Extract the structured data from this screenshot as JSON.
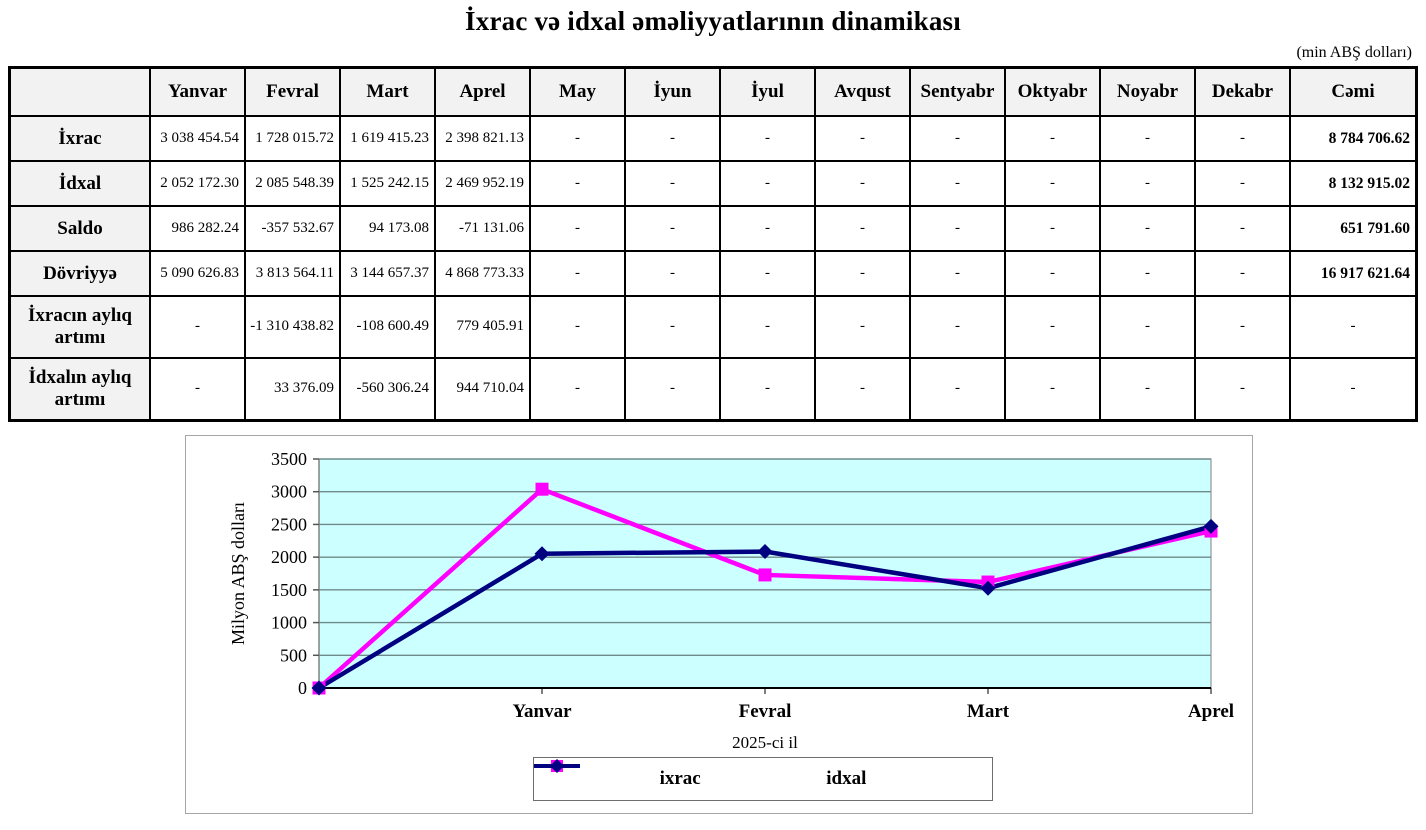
{
  "page": {
    "title": "İxrac və idxal əməliyyatlarının dinamikası",
    "unit_note": "(min ABŞ dolları)"
  },
  "table": {
    "columns": [
      "",
      "Yanvar",
      "Fevral",
      "Mart",
      "Aprel",
      "May",
      "İyun",
      "İyul",
      "Avqust",
      "Sentyabr",
      "Oktyabr",
      "Noyabr",
      "Dekabr",
      "Cəmi"
    ],
    "rows": [
      {
        "label": "İxrac",
        "tall": false,
        "values": [
          "3 038 454.54",
          "1 728 015.72",
          "1 619 415.23",
          "2 398 821.13",
          "-",
          "-",
          "-",
          "-",
          "-",
          "-",
          "-",
          "-",
          "8 784 706.62"
        ]
      },
      {
        "label": "İdxal",
        "tall": false,
        "values": [
          "2 052 172.30",
          "2 085 548.39",
          "1 525 242.15",
          "2 469 952.19",
          "-",
          "-",
          "-",
          "-",
          "-",
          "-",
          "-",
          "-",
          "8 132 915.02"
        ]
      },
      {
        "label": "Saldo",
        "tall": false,
        "values": [
          "986 282.24",
          "-357 532.67",
          "94 173.08",
          "-71 131.06",
          "-",
          "-",
          "-",
          "-",
          "-",
          "-",
          "-",
          "-",
          "651 791.60"
        ]
      },
      {
        "label": "Dövriyyə",
        "tall": false,
        "values": [
          "5 090 626.83",
          "3 813 564.11",
          "3 144 657.37",
          "4 868 773.33",
          "-",
          "-",
          "-",
          "-",
          "-",
          "-",
          "-",
          "-",
          "16 917 621.64"
        ]
      },
      {
        "label": "İxracın aylıq artımı",
        "tall": true,
        "values": [
          "-",
          "-1 310 438.82",
          "-108 600.49",
          "779 405.91",
          "-",
          "-",
          "-",
          "-",
          "-",
          "-",
          "-",
          "-",
          "-"
        ]
      },
      {
        "label": "İdxalın aylıq artımı",
        "tall": true,
        "values": [
          "-",
          "33 376.09",
          "-560 306.24",
          "944 710.04",
          "-",
          "-",
          "-",
          "-",
          "-",
          "-",
          "-",
          "-",
          "-"
        ]
      }
    ]
  },
  "chart_data": {
    "type": "line",
    "title": "",
    "x_categories": [
      "",
      "Yanvar",
      "Fevral",
      "Mart",
      "Aprel"
    ],
    "xlabel": "2025-ci il",
    "ylabel": "Milyon ABŞ dolları",
    "ylim": [
      0,
      3500
    ],
    "ytick_step": 500,
    "yticks": [
      0,
      500,
      1000,
      1500,
      2000,
      2500,
      3000,
      3500
    ],
    "grid": true,
    "legend_position": "bottom",
    "plot_bg": "#CCFFFF",
    "grid_color": "#6f8a8a",
    "axis_color": "#000000",
    "series": [
      {
        "name": "ixrac",
        "color": "#FF00FF",
        "marker": "square",
        "values": [
          0,
          3038.45,
          1728.02,
          1619.42,
          2398.82
        ]
      },
      {
        "name": "idxal",
        "color": "#000080",
        "marker": "diamond",
        "values": [
          0,
          2052.17,
          2085.55,
          1525.24,
          2469.95
        ]
      }
    ]
  }
}
